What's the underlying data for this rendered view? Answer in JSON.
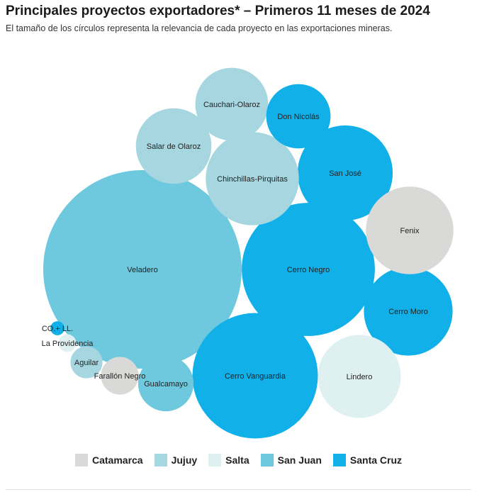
{
  "chart_data": {
    "type": "bubble",
    "title": "Principales proyectos exportadores* – Primeros 11 meses de 2024",
    "subtitle": "El tamaño de los círculos representa la relevancia de cada proyecto en las exportaciones mineras.",
    "provinces": [
      {
        "name": "Catamarca",
        "color": "#d9d9d7"
      },
      {
        "name": "Jujuy",
        "color": "#a6d7e1"
      },
      {
        "name": "Salta",
        "color": "#dff0f1"
      },
      {
        "name": "San Juan",
        "color": "#6ec8de"
      },
      {
        "name": "Santa Cruz",
        "color": "#12b0e8"
      }
    ],
    "legend_position": "bottom",
    "projects": [
      {
        "name": "Veladero",
        "province": "San Juan",
        "relevance": 100
      },
      {
        "name": "Cerro Negro",
        "province": "Santa Cruz",
        "relevance": 45
      },
      {
        "name": "Cerro Vanguardia",
        "province": "Santa Cruz",
        "relevance": 40
      },
      {
        "name": "San José",
        "province": "Santa Cruz",
        "relevance": 23
      },
      {
        "name": "Cerro Moro",
        "province": "Santa Cruz",
        "relevance": 20
      },
      {
        "name": "Fenix",
        "province": "Catamarca",
        "relevance": 19.5
      },
      {
        "name": "Lindero",
        "province": "Salta",
        "relevance": 17.5
      },
      {
        "name": "Chinchillas-Pirquitas",
        "province": "Jujuy",
        "relevance": 22
      },
      {
        "name": "Salar de Olaroz",
        "province": "Jujuy",
        "relevance": 14.5
      },
      {
        "name": "Cauchari-Olaroz",
        "province": "Jujuy",
        "relevance": 13.5
      },
      {
        "name": "Don Nicolás",
        "province": "Santa Cruz",
        "relevance": 10.5
      },
      {
        "name": "Gualcamayo",
        "province": "San Juan",
        "relevance": 7.8
      },
      {
        "name": "Farallón Negro",
        "province": "Catamarca",
        "relevance": 3.6
      },
      {
        "name": "Aguilar",
        "province": "Jujuy",
        "relevance": 2.6
      },
      {
        "name": "La Providencia",
        "province": "Salta",
        "relevance": 0.8
      },
      {
        "name": "CO.+ LL.",
        "province": "Santa Cruz",
        "relevance": 0.5
      }
    ]
  }
}
